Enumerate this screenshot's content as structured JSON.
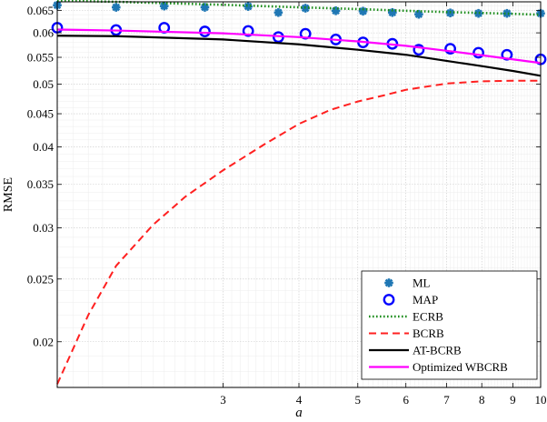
{
  "chart_data": {
    "type": "line",
    "title": "",
    "xlabel": "a",
    "ylabel": "RMSE",
    "xscale": "log",
    "yscale": "log",
    "xlim": [
      1.6,
      10
    ],
    "ylim": [
      0.017,
      0.067
    ],
    "grid": "on (major and minor)",
    "legend_placement": "bottom-right",
    "xticks": [
      3,
      4,
      5,
      6,
      7,
      8,
      9,
      10
    ],
    "xtick_labels": [
      "3",
      "4",
      "5",
      "6",
      "7",
      "8",
      "9",
      "10"
    ],
    "yticks": [
      0.02,
      0.025,
      0.03,
      0.035,
      0.04,
      0.045,
      0.05,
      0.055,
      0.06,
      0.065
    ],
    "ytick_labels": [
      "0.02",
      "0.025",
      "0.03",
      "0.035",
      "0.04",
      "0.045",
      "0.05",
      "0.055",
      "0.06",
      "0.065"
    ],
    "series": [
      {
        "name": "ML",
        "style": "markers",
        "marker": "asterisk",
        "color": "#1f77b4",
        "x": [
          1.6,
          2.0,
          2.4,
          2.8,
          3.3,
          3.7,
          4.1,
          4.6,
          5.1,
          5.7,
          6.3,
          7.1,
          7.9,
          8.8,
          10.0
        ],
        "y": [
          0.0662,
          0.0657,
          0.066,
          0.0657,
          0.0659,
          0.0645,
          0.0655,
          0.0649,
          0.0648,
          0.0645,
          0.0641,
          0.0644,
          0.0643,
          0.0643,
          0.0643
        ]
      },
      {
        "name": "MAP",
        "style": "markers",
        "marker": "circle",
        "color": "#0000ff",
        "x": [
          1.6,
          2.0,
          2.4,
          2.8,
          3.3,
          3.7,
          4.1,
          4.6,
          5.1,
          5.7,
          6.3,
          7.1,
          7.9,
          8.8,
          10.0
        ],
        "y": [
          0.0611,
          0.0606,
          0.0611,
          0.0603,
          0.0604,
          0.0591,
          0.0598,
          0.0586,
          0.058,
          0.0577,
          0.0565,
          0.0567,
          0.0559,
          0.0555,
          0.0546
        ]
      },
      {
        "name": "ECRB",
        "style": "dotted",
        "color": "#1a8c1a",
        "x": [
          1.6,
          2.0,
          3.0,
          4.0,
          5.0,
          6.0,
          7.0,
          8.0,
          9.0,
          10.0
        ],
        "y": [
          0.0673,
          0.067,
          0.0663,
          0.0657,
          0.0653,
          0.0649,
          0.0646,
          0.0644,
          0.0642,
          0.064
        ]
      },
      {
        "name": "BCRB",
        "style": "dashed",
        "color": "#ff2020",
        "x": [
          1.6,
          1.8,
          2.0,
          2.3,
          2.6,
          3.0,
          3.5,
          4.0,
          4.5,
          5.0,
          5.5,
          6.0,
          7.0,
          8.0,
          9.0,
          10.0
        ],
        "y": [
          0.0172,
          0.022,
          0.0262,
          0.0303,
          0.0335,
          0.0368,
          0.0403,
          0.0434,
          0.0456,
          0.047,
          0.048,
          0.049,
          0.0501,
          0.0505,
          0.0506,
          0.0506
        ]
      },
      {
        "name": "AT-BCRB",
        "style": "solid",
        "color": "#000000",
        "x": [
          1.6,
          2.0,
          3.0,
          4.0,
          5.0,
          6.0,
          7.0,
          8.0,
          9.0,
          10.0
        ],
        "y": [
          0.0594,
          0.0593,
          0.0586,
          0.0576,
          0.0565,
          0.0555,
          0.0543,
          0.0533,
          0.0524,
          0.0515
        ]
      },
      {
        "name": "Optimized WBCRB",
        "style": "solid",
        "color": "#ff00ff",
        "x": [
          1.6,
          2.0,
          3.0,
          4.0,
          5.0,
          6.0,
          7.0,
          8.0,
          9.0,
          10.0
        ],
        "y": [
          0.0607,
          0.0605,
          0.0599,
          0.0591,
          0.0582,
          0.0573,
          0.0563,
          0.0554,
          0.0546,
          0.0539
        ]
      }
    ]
  }
}
